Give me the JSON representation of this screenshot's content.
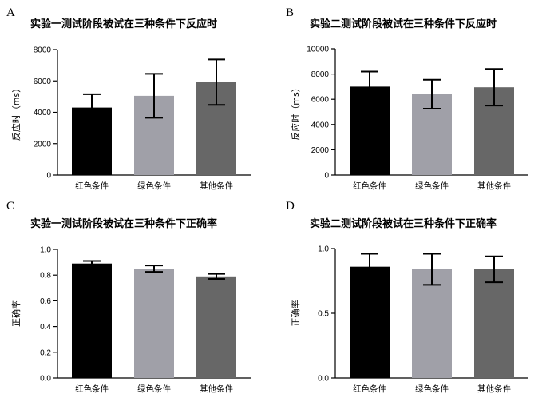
{
  "chart_data": [
    {
      "type": "bar",
      "panel": "A",
      "title": "实验一测试阶段被试在三种条件下反应时",
      "ylabel": "反应时（ms）",
      "categories": [
        "红色条件",
        "绿色条件",
        "其他条件"
      ],
      "values": [
        4300,
        5050,
        5920
      ],
      "errors": [
        850,
        1400,
        1450
      ],
      "ylim": [
        0,
        8000
      ],
      "yticks": [
        0,
        2000,
        4000,
        6000,
        8000
      ],
      "ytick_labels": [
        "0",
        "2000",
        "4000",
        "6000",
        "8000"
      ],
      "colors": [
        "#000000",
        "#a0a0a8",
        "#676767"
      ]
    },
    {
      "type": "bar",
      "panel": "B",
      "title": "实验二测试阶段被试在三种条件下反应时",
      "ylabel": "反应时（ms）",
      "categories": [
        "红色条件",
        "绿色条件",
        "其他条件"
      ],
      "values": [
        7000,
        6400,
        6950
      ],
      "errors": [
        1200,
        1150,
        1450
      ],
      "ylim": [
        0,
        10000
      ],
      "yticks": [
        0,
        2000,
        4000,
        6000,
        8000,
        10000
      ],
      "ytick_labels": [
        "0",
        "2000",
        "4000",
        "6000",
        "8000",
        "10000"
      ],
      "colors": [
        "#000000",
        "#a0a0a8",
        "#676767"
      ]
    },
    {
      "type": "bar",
      "panel": "C",
      "title": "实验一测试阶段被试在三种条件下正确率",
      "ylabel": "正确率",
      "categories": [
        "红色条件",
        "绿色条件",
        "其他条件"
      ],
      "values": [
        0.89,
        0.85,
        0.79
      ],
      "errors": [
        0.02,
        0.025,
        0.02
      ],
      "ylim": [
        0,
        1.0
      ],
      "yticks": [
        0,
        0.2,
        0.4,
        0.6,
        0.8,
        1.0
      ],
      "ytick_labels": [
        "0.0",
        "0.2",
        "0.4",
        "0.6",
        "0.8",
        "1.0"
      ],
      "colors": [
        "#000000",
        "#a0a0a8",
        "#676767"
      ]
    },
    {
      "type": "bar",
      "panel": "D",
      "title": "实验二测试阶段被试在三种条件下正确率",
      "ylabel": "正确率",
      "categories": [
        "红色条件",
        "绿色条件",
        "其他条件"
      ],
      "values": [
        0.86,
        0.84,
        0.84
      ],
      "errors": [
        0.1,
        0.12,
        0.1
      ],
      "ylim": [
        0,
        1.0
      ],
      "yticks": [
        0,
        0.5,
        1.0
      ],
      "ytick_labels": [
        "0.0",
        "0.5",
        "1.0"
      ],
      "colors": [
        "#000000",
        "#a0a0a8",
        "#676767"
      ]
    }
  ]
}
